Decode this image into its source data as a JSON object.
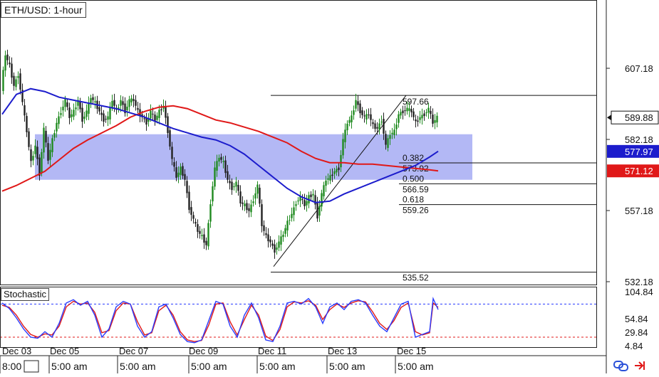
{
  "title": "ETH/USD: 1-hour",
  "stoch_label": "Stochastic",
  "chart_data": {
    "type": "line",
    "symbol": "ETH/USD",
    "timeframe": "1-hour",
    "price_axis": {
      "ylim": [
        527,
        617
      ],
      "ticks": [
        "607.18",
        "582.18",
        "557.18",
        "532.18"
      ]
    },
    "current_price": "589.88",
    "ma_fast_value": "577.97",
    "ma_slow_value": "571.12",
    "x_dates": [
      "Dec 03",
      "Dec 05",
      "Dec 07",
      "Dec 09",
      "Dec 11",
      "Dec 13",
      "Dec 15"
    ],
    "x_times": [
      "8:00",
      "5:00 am",
      "5:00 am",
      "5:00 am",
      "5:00 am",
      "5:00 am",
      "5:00 am"
    ],
    "fibonacci": {
      "high": "597.66",
      "low": "535.52",
      "levels": [
        {
          "ratio": "0.382",
          "price": "573.92"
        },
        {
          "ratio": "0.500",
          "price": "566.59"
        },
        {
          "ratio": "0.618",
          "price": "559.26"
        }
      ]
    },
    "zone": {
      "from": 568,
      "to": 584
    },
    "price_series": [
      [
        0,
        600
      ],
      [
        6,
        612
      ],
      [
        12,
        608
      ],
      [
        18,
        601
      ],
      [
        24,
        605
      ],
      [
        30,
        595
      ],
      [
        36,
        585
      ],
      [
        42,
        574
      ],
      [
        48,
        580
      ],
      [
        54,
        570
      ],
      [
        60,
        586
      ],
      [
        66,
        575
      ],
      [
        72,
        582
      ],
      [
        78,
        588
      ],
      [
        84,
        592
      ],
      [
        90,
        596
      ],
      [
        96,
        590
      ],
      [
        102,
        592
      ],
      [
        108,
        596
      ],
      [
        114,
        589
      ],
      [
        120,
        592
      ],
      [
        126,
        597
      ],
      [
        132,
        595
      ],
      [
        138,
        592
      ],
      [
        144,
        589
      ],
      [
        150,
        590
      ],
      [
        156,
        596
      ],
      [
        162,
        592
      ],
      [
        168,
        596
      ],
      [
        174,
        592
      ],
      [
        180,
        596
      ],
      [
        186,
        596
      ],
      [
        192,
        592
      ],
      [
        198,
        590
      ],
      [
        204,
        588
      ],
      [
        210,
        592
      ],
      [
        216,
        589
      ],
      [
        222,
        592
      ],
      [
        228,
        594
      ],
      [
        234,
        585
      ],
      [
        240,
        575
      ],
      [
        246,
        569
      ],
      [
        252,
        572
      ],
      [
        258,
        568
      ],
      [
        264,
        558
      ],
      [
        270,
        554
      ],
      [
        276,
        550
      ],
      [
        282,
        548
      ],
      [
        288,
        545
      ],
      [
        294,
        560
      ],
      [
        300,
        572
      ],
      [
        306,
        576
      ],
      [
        312,
        574
      ],
      [
        318,
        568
      ],
      [
        324,
        565
      ],
      [
        330,
        567
      ],
      [
        336,
        560
      ],
      [
        342,
        559
      ],
      [
        348,
        557
      ],
      [
        354,
        561
      ],
      [
        360,
        566
      ],
      [
        366,
        552
      ],
      [
        372,
        548
      ],
      [
        378,
        546
      ],
      [
        384,
        543
      ],
      [
        390,
        546
      ],
      [
        396,
        549
      ],
      [
        402,
        553
      ],
      [
        408,
        556
      ],
      [
        414,
        560
      ],
      [
        420,
        562
      ],
      [
        426,
        559
      ],
      [
        432,
        562
      ],
      [
        438,
        563
      ],
      [
        444,
        555
      ],
      [
        450,
        563
      ],
      [
        456,
        568
      ],
      [
        462,
        569
      ],
      [
        468,
        571
      ],
      [
        474,
        572
      ],
      [
        480,
        582
      ],
      [
        486,
        588
      ],
      [
        492,
        590
      ],
      [
        498,
        596
      ],
      [
        504,
        592
      ],
      [
        510,
        590
      ],
      [
        516,
        591
      ],
      [
        522,
        587
      ],
      [
        528,
        586
      ],
      [
        534,
        589
      ],
      [
        540,
        580
      ],
      [
        546,
        584
      ],
      [
        552,
        585
      ],
      [
        558,
        591
      ],
      [
        564,
        592
      ],
      [
        570,
        593
      ],
      [
        576,
        592
      ],
      [
        582,
        588
      ],
      [
        588,
        590
      ],
      [
        594,
        591
      ],
      [
        600,
        593
      ],
      [
        606,
        588
      ],
      [
        612,
        589.88
      ]
    ],
    "ma_fast": [
      [
        0,
        591
      ],
      [
        20,
        598
      ],
      [
        40,
        600
      ],
      [
        60,
        599
      ],
      [
        80,
        597
      ],
      [
        100,
        596
      ],
      [
        120,
        595
      ],
      [
        140,
        594
      ],
      [
        160,
        593
      ],
      [
        180,
        591.5
      ],
      [
        200,
        590
      ],
      [
        220,
        588
      ],
      [
        240,
        586
      ],
      [
        260,
        584.5
      ],
      [
        280,
        583
      ],
      [
        300,
        582
      ],
      [
        320,
        580
      ],
      [
        340,
        577
      ],
      [
        360,
        573
      ],
      [
        380,
        569
      ],
      [
        400,
        565
      ],
      [
        420,
        562
      ],
      [
        440,
        560
      ],
      [
        460,
        560.5
      ],
      [
        480,
        563
      ],
      [
        500,
        565
      ],
      [
        520,
        567
      ],
      [
        540,
        569
      ],
      [
        560,
        571
      ],
      [
        580,
        573
      ],
      [
        600,
        576
      ],
      [
        612,
        578
      ]
    ],
    "ma_slow": [
      [
        0,
        564
      ],
      [
        20,
        566
      ],
      [
        40,
        568.5
      ],
      [
        60,
        571
      ],
      [
        80,
        575
      ],
      [
        100,
        579
      ],
      [
        120,
        582
      ],
      [
        140,
        584.5
      ],
      [
        160,
        587
      ],
      [
        180,
        590
      ],
      [
        200,
        592
      ],
      [
        220,
        593.5
      ],
      [
        240,
        594
      ],
      [
        260,
        593
      ],
      [
        280,
        591
      ],
      [
        300,
        589
      ],
      [
        320,
        588
      ],
      [
        340,
        586.5
      ],
      [
        360,
        585
      ],
      [
        380,
        583
      ],
      [
        400,
        581
      ],
      [
        420,
        578
      ],
      [
        440,
        575.5
      ],
      [
        460,
        574
      ],
      [
        480,
        574
      ],
      [
        500,
        573.5
      ],
      [
        520,
        573.5
      ],
      [
        540,
        573
      ],
      [
        560,
        572.5
      ],
      [
        580,
        572
      ],
      [
        600,
        571.5
      ],
      [
        612,
        571.12
      ]
    ],
    "stochastic": {
      "axis_ticks": [
        "104.84",
        "54.84",
        "29.84",
        "4.84"
      ],
      "upper_level": 80,
      "lower_level": 20,
      "k": [
        [
          0,
          82
        ],
        [
          10,
          72
        ],
        [
          20,
          55
        ],
        [
          30,
          35
        ],
        [
          40,
          20
        ],
        [
          50,
          18
        ],
        [
          60,
          30
        ],
        [
          70,
          20
        ],
        [
          80,
          45
        ],
        [
          90,
          82
        ],
        [
          100,
          88
        ],
        [
          110,
          78
        ],
        [
          120,
          85
        ],
        [
          130,
          60
        ],
        [
          140,
          20
        ],
        [
          150,
          35
        ],
        [
          160,
          75
        ],
        [
          170,
          85
        ],
        [
          180,
          80
        ],
        [
          190,
          40
        ],
        [
          200,
          20
        ],
        [
          210,
          30
        ],
        [
          220,
          75
        ],
        [
          230,
          80
        ],
        [
          240,
          55
        ],
        [
          250,
          25
        ],
        [
          260,
          12
        ],
        [
          270,
          10
        ],
        [
          280,
          15
        ],
        [
          290,
          50
        ],
        [
          300,
          85
        ],
        [
          310,
          80
        ],
        [
          320,
          40
        ],
        [
          330,
          20
        ],
        [
          340,
          60
        ],
        [
          350,
          82
        ],
        [
          360,
          55
        ],
        [
          370,
          15
        ],
        [
          380,
          12
        ],
        [
          390,
          40
        ],
        [
          400,
          82
        ],
        [
          410,
          85
        ],
        [
          420,
          80
        ],
        [
          430,
          90
        ],
        [
          440,
          75
        ],
        [
          450,
          45
        ],
        [
          460,
          75
        ],
        [
          470,
          82
        ],
        [
          480,
          70
        ],
        [
          490,
          85
        ],
        [
          500,
          88
        ],
        [
          510,
          82
        ],
        [
          520,
          60
        ],
        [
          530,
          40
        ],
        [
          540,
          30
        ],
        [
          550,
          55
        ],
        [
          560,
          80
        ],
        [
          570,
          85
        ],
        [
          580,
          20
        ],
        [
          590,
          25
        ],
        [
          600,
          30
        ],
        [
          605,
          90
        ],
        [
          612,
          70
        ]
      ],
      "d": [
        [
          0,
          78
        ],
        [
          10,
          74
        ],
        [
          20,
          60
        ],
        [
          30,
          40
        ],
        [
          40,
          25
        ],
        [
          50,
          20
        ],
        [
          60,
          26
        ],
        [
          70,
          24
        ],
        [
          80,
          40
        ],
        [
          90,
          75
        ],
        [
          100,
          85
        ],
        [
          110,
          80
        ],
        [
          120,
          82
        ],
        [
          130,
          65
        ],
        [
          140,
          28
        ],
        [
          150,
          32
        ],
        [
          160,
          68
        ],
        [
          170,
          82
        ],
        [
          180,
          80
        ],
        [
          190,
          48
        ],
        [
          200,
          24
        ],
        [
          210,
          28
        ],
        [
          220,
          68
        ],
        [
          230,
          78
        ],
        [
          240,
          60
        ],
        [
          250,
          30
        ],
        [
          260,
          15
        ],
        [
          270,
          12
        ],
        [
          280,
          14
        ],
        [
          290,
          42
        ],
        [
          300,
          80
        ],
        [
          310,
          82
        ],
        [
          320,
          48
        ],
        [
          330,
          24
        ],
        [
          340,
          52
        ],
        [
          350,
          78
        ],
        [
          360,
          60
        ],
        [
          370,
          22
        ],
        [
          380,
          14
        ],
        [
          390,
          34
        ],
        [
          400,
          75
        ],
        [
          410,
          84
        ],
        [
          420,
          82
        ],
        [
          430,
          86
        ],
        [
          440,
          78
        ],
        [
          450,
          52
        ],
        [
          460,
          70
        ],
        [
          470,
          80
        ],
        [
          480,
          74
        ],
        [
          490,
          82
        ],
        [
          500,
          86
        ],
        [
          510,
          84
        ],
        [
          520,
          66
        ],
        [
          530,
          45
        ],
        [
          540,
          34
        ],
        [
          550,
          50
        ],
        [
          560,
          74
        ],
        [
          570,
          82
        ],
        [
          580,
          30
        ],
        [
          590,
          24
        ],
        [
          600,
          28
        ],
        [
          605,
          82
        ],
        [
          612,
          74
        ]
      ]
    }
  },
  "icons": {
    "link": "link-icon",
    "arrow": "arrow-right-icon"
  },
  "colors": {
    "up_candle": "#1f8a1f",
    "down_candle": "#222222",
    "ma_fast": "#1c1ccc",
    "ma_slow": "#e01818",
    "zone": "#9aa0f2",
    "stoch_k": "#2a3cff",
    "stoch_d": "#e01818",
    "link_icon": "#2a50d8",
    "arrow_icon": "#e01818"
  }
}
